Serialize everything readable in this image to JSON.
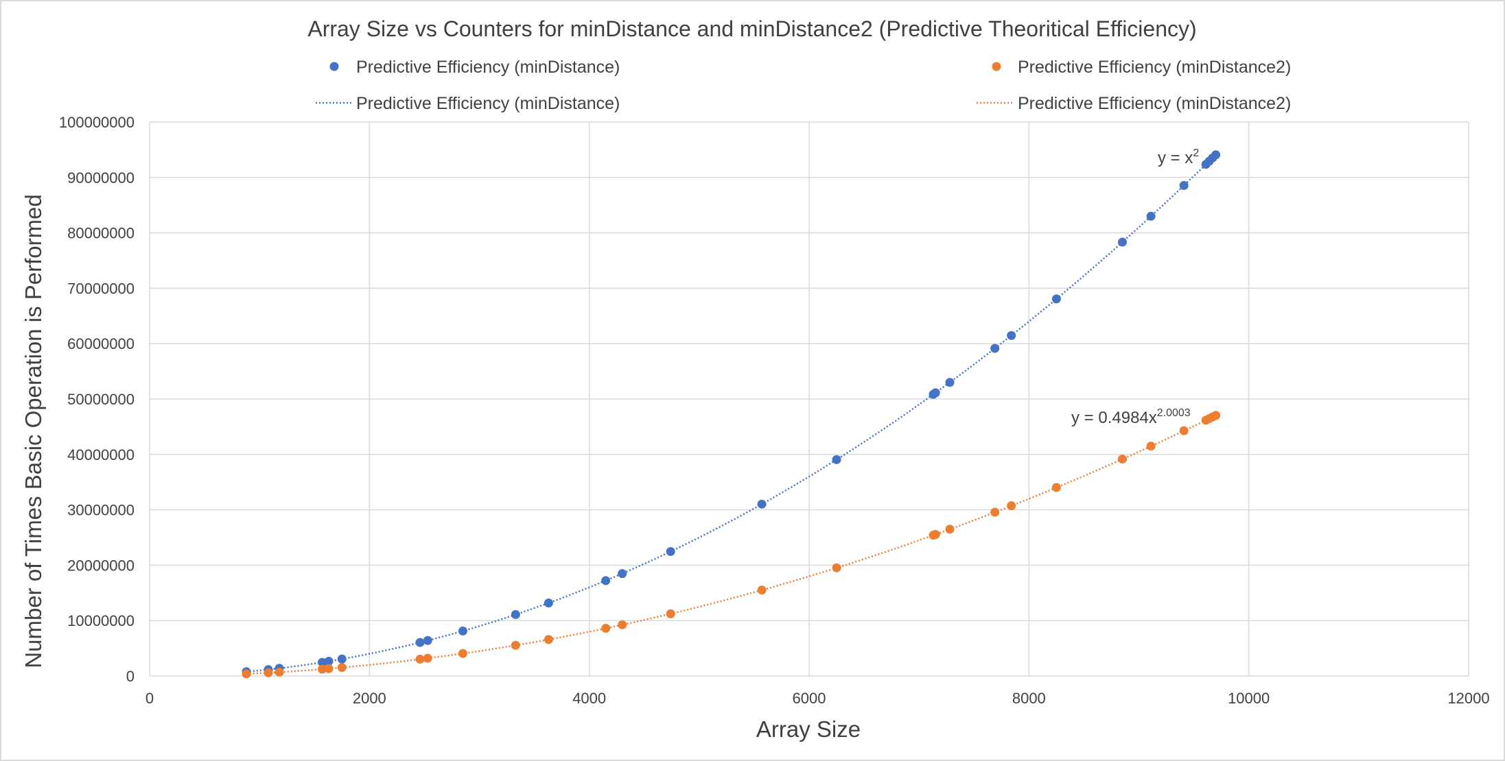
{
  "chart_data": {
    "type": "scatter",
    "title": "Array Size vs Counters for minDistance and minDistance2 (Predictive Theoritical Efficiency)",
    "xlabel": "Array Size",
    "ylabel": "Number of Times Basic Operation is Performed",
    "xlim": [
      0,
      12000
    ],
    "ylim": [
      0,
      100000000
    ],
    "x_ticks": [
      "0",
      "2000",
      "4000",
      "6000",
      "8000",
      "10000",
      "12000"
    ],
    "y_ticks": [
      "0",
      "10000000",
      "20000000",
      "30000000",
      "40000000",
      "50000000",
      "60000000",
      "70000000",
      "80000000",
      "90000000",
      "100000000"
    ],
    "grid": true,
    "legend_position": "top",
    "series": [
      {
        "name": "Predictive Efficiency (minDistance)",
        "color": "#4472C4",
        "marker": "circle",
        "x": [
          880,
          1080,
          1180,
          1570,
          1630,
          1750,
          2460,
          2530,
          2850,
          3330,
          3630,
          4150,
          4300,
          4740,
          5570,
          6250,
          7130,
          7150,
          7280,
          7690,
          7840,
          8250,
          8850,
          9110,
          9410,
          9610,
          9640,
          9670,
          9700
        ],
        "y": [
          774400,
          1166400,
          1392400,
          2464900,
          2656900,
          3062500,
          6051600,
          6400900,
          8122500,
          11088900,
          13176900,
          17222500,
          18490000,
          22467600,
          31024900,
          39062500,
          50836900,
          51122500,
          52998400,
          59136100,
          61465600,
          68062500,
          78322500,
          82992100,
          88548100,
          92352100,
          92929600,
          93508900,
          94090000
        ]
      },
      {
        "name": "Predictive Efficiency (minDistance2)",
        "color": "#ED7D31",
        "marker": "circle",
        "x": [
          880,
          1080,
          1180,
          1570,
          1630,
          1750,
          2460,
          2530,
          2850,
          3330,
          3630,
          4150,
          4300,
          4740,
          5570,
          6250,
          7130,
          7150,
          7280,
          7690,
          7840,
          8250,
          8850,
          9110,
          9410,
          9610,
          9640,
          9670,
          9700
        ],
        "y": [
          387200,
          582660,
          695610,
          1231700,
          1327700,
          1530600,
          3025000,
          3200000,
          4061200,
          5544000,
          6588000,
          8610800,
          9244500,
          11233000,
          15511000,
          19530000,
          25418000,
          25561000,
          26499000,
          29568000,
          30732000,
          34031000,
          39161000,
          41496000,
          44274000,
          46176000,
          46465000,
          46754000,
          47045000
        ]
      }
    ],
    "trendlines": [
      {
        "name": "Predictive Efficiency (minDistance)",
        "color": "#4472C4",
        "style": "dotted",
        "a": 1,
        "b": 2,
        "equation_base": "y = x",
        "equation_exp": "2"
      },
      {
        "name": "Predictive Efficiency (minDistance2)",
        "color": "#ED7D31",
        "style": "dotted",
        "a": 0.4984,
        "b": 2.0003,
        "equation_base": "y = 0.4984x",
        "equation_exp": "2.0003"
      }
    ]
  }
}
